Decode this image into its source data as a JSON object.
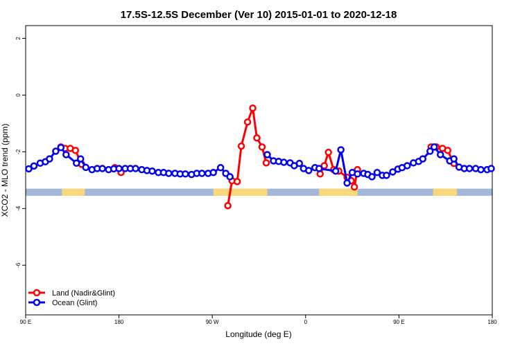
{
  "chart_data": {
    "type": "line",
    "title": "17.5S-12.5S December (Ver 10)   2015-01-01 to 2020-12-18",
    "x_label": "Longitude (deg E)",
    "y_label": "XCO2 - MLO trend (ppm)",
    "xlim": [
      90,
      540
    ],
    "ylim": [
      -7.75,
      2.45
    ],
    "xticks": [
      {
        "value": 90,
        "label": "90 E"
      },
      {
        "value": 180,
        "label": "180"
      },
      {
        "value": 270,
        "label": "90 W"
      },
      {
        "value": 360,
        "label": "0"
      },
      {
        "value": 450,
        "label": "90 E"
      },
      {
        "value": 540,
        "label": "180"
      }
    ],
    "yticks": [
      -6,
      -4,
      -2,
      0,
      2
    ],
    "legend": "bottom-left",
    "land_mask": {
      "ylim": [
        -3.55,
        -3.3
      ],
      "ocean_color": "#a3b8d8",
      "land_color": "#f9d77a",
      "spans": [
        [
          125,
          147
        ],
        [
          271,
          323
        ],
        [
          373,
          410
        ],
        [
          483,
          506
        ]
      ]
    },
    "series": [
      {
        "name": "Land (Nadir&Glint)",
        "color": "#ff0000",
        "x": [
          124,
          128,
          133,
          138,
          144,
          160,
          176,
          182,
          230,
          285,
          289,
          294,
          298,
          304,
          309,
          313,
          318,
          322,
          350,
          374,
          378,
          382,
          387,
          392,
          400,
          404,
          407,
          410,
          445,
          481,
          486,
          492,
          497,
          503
        ],
        "values": [
          -1.83,
          -1.88,
          -1.88,
          -1.95,
          -2.44,
          null,
          -2.56,
          -2.73,
          null,
          -3.9,
          -3.02,
          -3.05,
          -1.8,
          -0.95,
          -0.46,
          -1.51,
          -1.83,
          -2.39,
          null,
          -2.78,
          -2.49,
          -2.02,
          -2.63,
          -2.68,
          -2.9,
          -3.02,
          -3.24,
          -2.63,
          null,
          -1.83,
          -1.83,
          -1.88,
          -1.95,
          -2.41
        ]
      },
      {
        "name": "Ocean (Glint)",
        "color": "#0000ee",
        "x": [
          93,
          98,
          104,
          109,
          113,
          119,
          124,
          129,
          139,
          143,
          148,
          154,
          159,
          164,
          170,
          175,
          180,
          186,
          191,
          196,
          202,
          207,
          212,
          218,
          223,
          228,
          234,
          239,
          244,
          250,
          255,
          260,
          266,
          271,
          278,
          283,
          287,
          305,
          323,
          329,
          334,
          339,
          345,
          349,
          354,
          358,
          363,
          369,
          373,
          389,
          394,
          400,
          405,
          410,
          416,
          420,
          424,
          429,
          434,
          438,
          444,
          449,
          453,
          458,
          464,
          469,
          473,
          480,
          484,
          490,
          499,
          503,
          508,
          513,
          518,
          524,
          529,
          535,
          539
        ],
        "values": [
          -2.6,
          -2.5,
          -2.4,
          -2.35,
          -2.25,
          -1.98,
          -1.85,
          -2.1,
          -2.4,
          -2.25,
          -2.55,
          -2.63,
          -2.59,
          -2.59,
          -2.63,
          -2.6,
          -2.59,
          -2.59,
          -2.59,
          -2.59,
          -2.63,
          -2.66,
          -2.68,
          -2.73,
          -2.73,
          -2.76,
          -2.76,
          -2.78,
          -2.78,
          -2.8,
          -2.76,
          -2.76,
          -2.76,
          -2.73,
          -2.56,
          -2.76,
          -2.88,
          null,
          -2.1,
          -2.32,
          -2.34,
          -2.37,
          -2.39,
          -2.49,
          -2.41,
          -2.59,
          -2.66,
          -2.56,
          -2.59,
          -2.68,
          -1.93,
          -3.1,
          -2.73,
          -2.78,
          -2.76,
          -2.8,
          -2.88,
          -2.73,
          -2.83,
          -2.83,
          -2.71,
          -2.61,
          -2.56,
          -2.49,
          -2.39,
          -2.34,
          -2.25,
          -1.98,
          -1.83,
          -2.1,
          -2.32,
          -2.25,
          -2.54,
          -2.59,
          -2.59,
          -2.59,
          -2.63,
          -2.63,
          -2.59
        ]
      }
    ]
  }
}
